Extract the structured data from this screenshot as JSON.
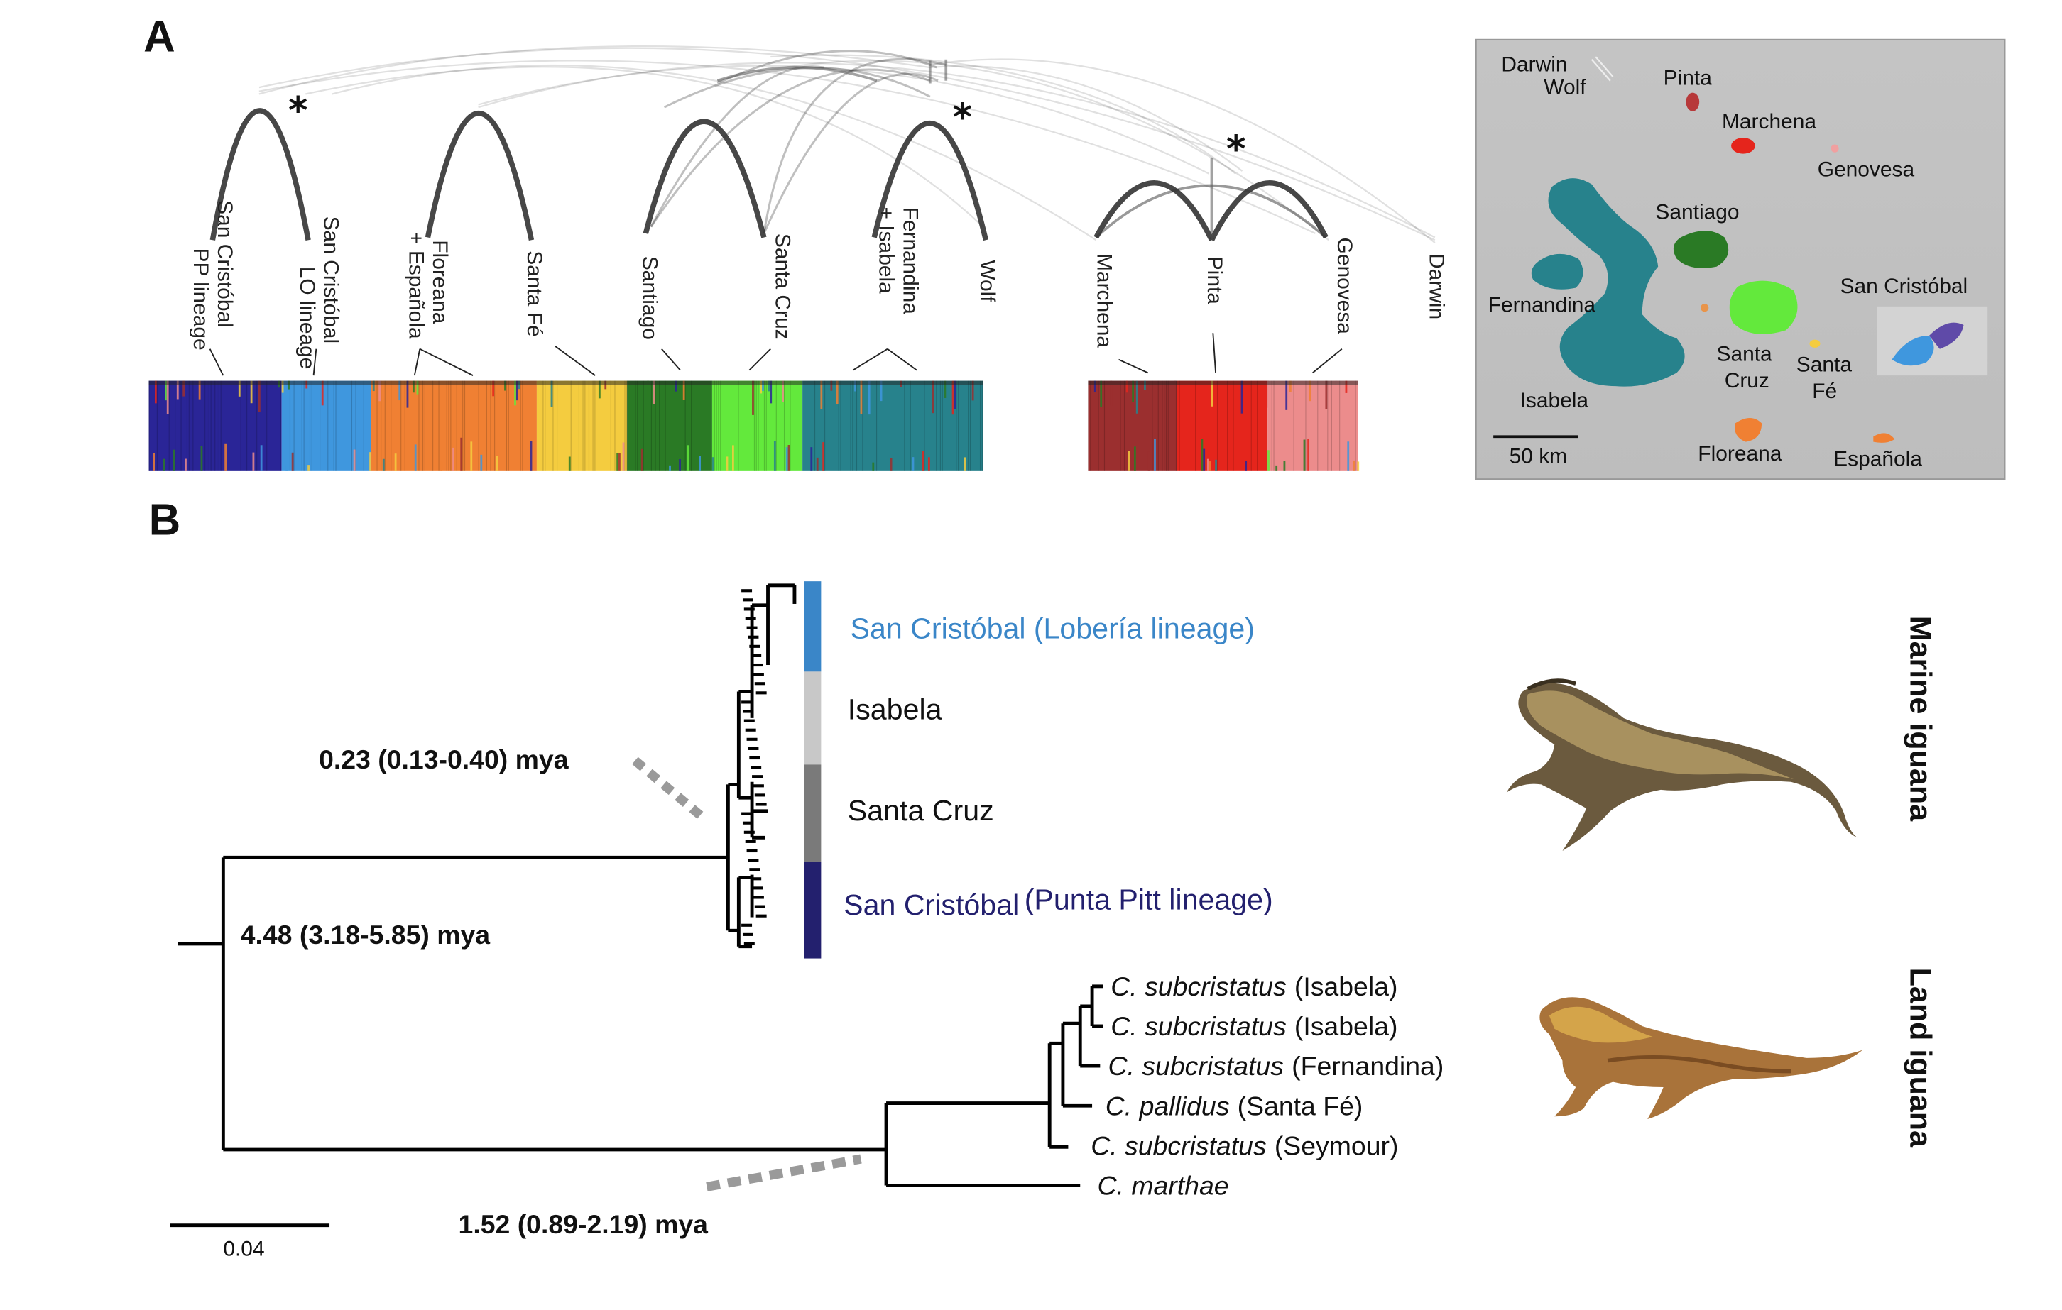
{
  "panelA": {
    "letter": "A",
    "populations": [
      {
        "id": "pp",
        "line1": "San Cristóbal",
        "line2": "PP lineage"
      },
      {
        "id": "lo",
        "line1": "San Cristóbal",
        "line2": "LO lineage"
      },
      {
        "id": "flo",
        "line1": "Floreana",
        "line2": "+ Española"
      },
      {
        "id": "sfe",
        "line1": "Santa Fé",
        "line2": ""
      },
      {
        "id": "sant",
        "line1": "Santiago",
        "line2": ""
      },
      {
        "id": "scz",
        "line1": "Santa Cruz",
        "line2": ""
      },
      {
        "id": "fer",
        "line1": "Fernandina",
        "line2": "+ Isabela"
      },
      {
        "id": "wolf",
        "line1": "Wolf",
        "line2": ""
      },
      {
        "id": "mar",
        "line1": "Marchena",
        "line2": ""
      },
      {
        "id": "pin",
        "line1": "Pinta",
        "line2": ""
      },
      {
        "id": "gen",
        "line1": "Genovesa",
        "line2": ""
      },
      {
        "id": "dar",
        "line1": "Darwin",
        "line2": ""
      }
    ],
    "significance_marker": "*",
    "structure_blocks": [
      {
        "color": "#2a2597"
      },
      {
        "color": "#3f97de"
      },
      {
        "color": "#f08033"
      },
      {
        "color": "#f4cc3f"
      },
      {
        "color": "#2a7a25"
      },
      {
        "color": "#63e93c"
      },
      {
        "color": "#27828c"
      },
      {
        "color": "#9b2f2f"
      },
      {
        "color": "#e5251c"
      },
      {
        "color": "#ec8c8c"
      }
    ],
    "map": {
      "islands": [
        "Darwin",
        "Wolf",
        "Pinta",
        "Marchena",
        "Genovesa",
        "Santiago",
        "San Cristóbal",
        "Fernandina",
        "Isabela",
        "Santa Cruz",
        "Santa Fé",
        "Floreana",
        "Española"
      ],
      "scale_label": "50 km"
    }
  },
  "panelB": {
    "letter": "B",
    "clades": {
      "lo_name": "San Cristóbal",
      "lo_note": "(Lobería lineage)",
      "isabela": "Isabela",
      "santacruz": "Santa Cruz",
      "pp_name": "San Cristóbal",
      "pp_note": "(Punta Pitt lineage)"
    },
    "clade_colors": {
      "lo": "#3a86c8",
      "isabela": "#c8c8c8",
      "santacruz": "#7a7a7a",
      "pp": "#23206e"
    },
    "land_taxa": [
      {
        "genus": "C. subcristatus",
        "loc": "(Isabela)"
      },
      {
        "genus": "C. subcristatus",
        "loc": "(Isabela)"
      },
      {
        "genus": "C. subcristatus",
        "loc": "(Fernandina)"
      },
      {
        "genus": "C. pallidus",
        "loc": "(Santa Fé)"
      },
      {
        "genus": "C. subcristatus",
        "loc": "(Seymour)"
      },
      {
        "genus": "C. marthae",
        "loc": ""
      }
    ],
    "dates": {
      "marine_crown": "0.23 (0.13-0.40) mya",
      "root": "4.48 (3.18-5.85) mya",
      "land_crown": "1.52 (0.89-2.19) mya"
    },
    "scale_bar": "0.04",
    "side_labels": {
      "marine": "Marine iguana",
      "land": "Land iguana"
    }
  }
}
